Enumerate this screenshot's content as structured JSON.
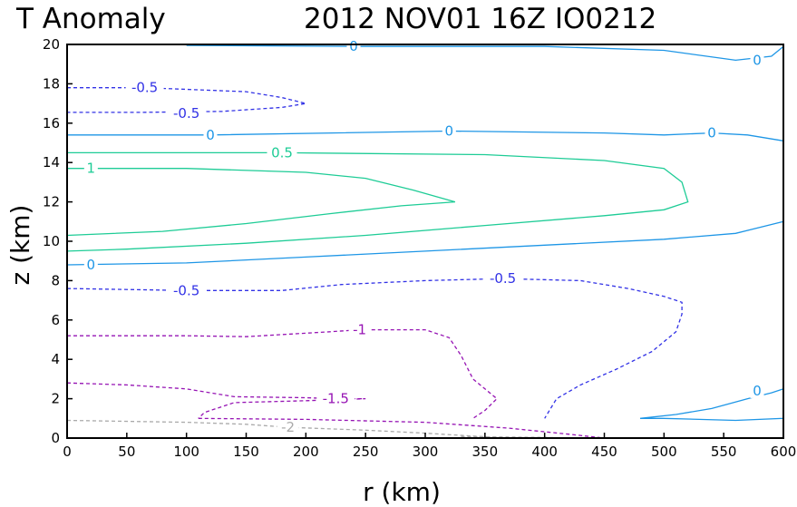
{
  "title_left": "T Anomaly",
  "title_right": "2012 NOV01 16Z   IO0212",
  "chart_data": {
    "type": "contour",
    "title": "T Anomaly",
    "subtitle": "2012 NOV01 16Z   IO0212",
    "xlabel": "r (km)",
    "ylabel": "z (km)",
    "xlim": [
      0,
      600
    ],
    "ylim": [
      0,
      20
    ],
    "x_ticks": [
      0,
      50,
      100,
      150,
      200,
      250,
      300,
      350,
      400,
      450,
      500,
      550,
      600
    ],
    "y_ticks": [
      0,
      2,
      4,
      6,
      8,
      10,
      12,
      14,
      16,
      18,
      20
    ],
    "grid": false,
    "contours": [
      {
        "level": 0,
        "color": "#1e96e6",
        "dashed": false,
        "labels": [
          {
            "text": "0",
            "x": 240,
            "y": 19.9
          },
          {
            "text": "0",
            "x": 578,
            "y": 19.2
          }
        ],
        "points": [
          [
            100,
            19.95
          ],
          [
            240,
            19.9
          ],
          [
            400,
            19.9
          ],
          [
            500,
            19.7
          ],
          [
            560,
            19.2
          ],
          [
            590,
            19.4
          ],
          [
            600,
            19.9
          ]
        ]
      },
      {
        "level": 0,
        "color": "#1e96e6",
        "dashed": false,
        "labels": [
          {
            "text": "0",
            "x": 120,
            "y": 15.4
          },
          {
            "text": "0",
            "x": 320,
            "y": 15.6
          },
          {
            "text": "0",
            "x": 540,
            "y": 15.5
          }
        ],
        "points": [
          [
            0,
            15.4
          ],
          [
            120,
            15.4
          ],
          [
            320,
            15.6
          ],
          [
            450,
            15.5
          ],
          [
            500,
            15.4
          ],
          [
            540,
            15.5
          ],
          [
            570,
            15.4
          ],
          [
            600,
            15.1
          ]
        ]
      },
      {
        "level": 0,
        "color": "#1e96e6",
        "dashed": false,
        "labels": [
          {
            "text": "0",
            "x": 20,
            "y": 8.8
          }
        ],
        "points": [
          [
            0,
            8.8
          ],
          [
            100,
            8.9
          ],
          [
            200,
            9.2
          ],
          [
            300,
            9.5
          ],
          [
            400,
            9.8
          ],
          [
            500,
            10.1
          ],
          [
            560,
            10.4
          ],
          [
            600,
            11.0
          ]
        ]
      },
      {
        "level": 0,
        "color": "#1e96e6",
        "dashed": false,
        "labels": [
          {
            "text": "0",
            "x": 578,
            "y": 2.4
          }
        ],
        "points": [
          [
            480,
            1.0
          ],
          [
            510,
            1.2
          ],
          [
            540,
            1.5
          ],
          [
            570,
            2.0
          ],
          [
            590,
            2.3
          ],
          [
            600,
            2.5
          ],
          [
            600,
            1.0
          ],
          [
            560,
            0.9
          ],
          [
            500,
            1.0
          ],
          [
            480,
            1.0
          ]
        ]
      },
      {
        "level": 0.5,
        "color": "#1ecc96",
        "dashed": false,
        "labels": [
          {
            "text": "0.5",
            "x": 180,
            "y": 14.5
          }
        ],
        "points": [
          [
            0,
            14.5
          ],
          [
            180,
            14.5
          ],
          [
            350,
            14.4
          ],
          [
            450,
            14.1
          ],
          [
            500,
            13.7
          ],
          [
            515,
            13.0
          ],
          [
            520,
            12.0
          ],
          [
            500,
            11.6
          ],
          [
            450,
            11.3
          ],
          [
            350,
            10.8
          ],
          [
            250,
            10.3
          ],
          [
            150,
            9.9
          ],
          [
            50,
            9.6
          ],
          [
            0,
            9.5
          ]
        ]
      },
      {
        "level": 1,
        "color": "#1ecc96",
        "dashed": false,
        "labels": [
          {
            "text": "1",
            "x": 20,
            "y": 13.7
          }
        ],
        "points": [
          [
            0,
            13.7
          ],
          [
            100,
            13.7
          ],
          [
            200,
            13.5
          ],
          [
            250,
            13.2
          ],
          [
            290,
            12.6
          ],
          [
            325,
            12.0
          ],
          [
            280,
            11.8
          ],
          [
            220,
            11.4
          ],
          [
            150,
            10.9
          ],
          [
            80,
            10.5
          ],
          [
            0,
            10.3
          ]
        ]
      },
      {
        "level": -0.5,
        "color": "#3232e6",
        "dashed": true,
        "labels": [
          {
            "text": "-0.5",
            "x": 65,
            "y": 17.8
          },
          {
            "text": "-0.5",
            "x": 100,
            "y": 16.5
          }
        ],
        "points": [
          [
            0,
            17.8
          ],
          [
            65,
            17.8
          ],
          [
            150,
            17.6
          ],
          [
            180,
            17.3
          ],
          [
            200,
            17.0
          ],
          [
            180,
            16.8
          ],
          [
            130,
            16.6
          ],
          [
            60,
            16.55
          ],
          [
            0,
            16.55
          ]
        ]
      },
      {
        "level": -0.5,
        "color": "#3232e6",
        "dashed": true,
        "labels": [
          {
            "text": "-0.5",
            "x": 100,
            "y": 7.5
          },
          {
            "text": "-0.5",
            "x": 365,
            "y": 8.1
          }
        ],
        "points": [
          [
            0,
            7.6
          ],
          [
            100,
            7.5
          ],
          [
            180,
            7.5
          ],
          [
            230,
            7.8
          ],
          [
            300,
            8.0
          ],
          [
            365,
            8.1
          ],
          [
            430,
            8.0
          ],
          [
            470,
            7.6
          ],
          [
            500,
            7.2
          ],
          [
            515,
            6.9
          ],
          [
            515,
            6.3
          ],
          [
            510,
            5.4
          ],
          [
            490,
            4.4
          ],
          [
            460,
            3.5
          ],
          [
            430,
            2.7
          ],
          [
            410,
            2.0
          ],
          [
            400,
            1.0
          ]
        ]
      },
      {
        "level": -1,
        "color": "#9614b4",
        "dashed": true,
        "labels": [
          {
            "text": "-1",
            "x": 245,
            "y": 5.5
          }
        ],
        "points": [
          [
            0,
            5.2
          ],
          [
            100,
            5.2
          ],
          [
            150,
            5.15
          ],
          [
            220,
            5.4
          ],
          [
            245,
            5.5
          ],
          [
            300,
            5.5
          ],
          [
            320,
            5.1
          ],
          [
            330,
            4.2
          ],
          [
            340,
            3.0
          ],
          [
            360,
            2.0
          ],
          [
            350,
            1.4
          ],
          [
            340,
            1.0
          ]
        ]
      },
      {
        "level": -1,
        "color": "#9614b4",
        "dashed": true,
        "labels": [],
        "points": [
          [
            110,
            1.0
          ],
          [
            200,
            0.95
          ],
          [
            300,
            0.8
          ],
          [
            370,
            0.5
          ],
          [
            420,
            0.2
          ],
          [
            450,
            0.0
          ]
        ]
      },
      {
        "level": -1.5,
        "color": "#9614b4",
        "dashed": true,
        "labels": [
          {
            "text": "-1.5",
            "x": 225,
            "y": 2.0
          }
        ],
        "points": [
          [
            0,
            2.8
          ],
          [
            50,
            2.7
          ],
          [
            100,
            2.5
          ],
          [
            140,
            2.1
          ],
          [
            200,
            2.05
          ],
          [
            225,
            2.0
          ],
          [
            250,
            2.0
          ],
          [
            200,
            1.9
          ],
          [
            140,
            1.8
          ],
          [
            115,
            1.3
          ],
          [
            110,
            1.0
          ]
        ]
      },
      {
        "level": -2,
        "color": "#aaaaaa",
        "dashed": true,
        "labels": [
          {
            "text": "-2",
            "x": 185,
            "y": 0.55
          }
        ],
        "points": [
          [
            0,
            0.9
          ],
          [
            100,
            0.8
          ],
          [
            150,
            0.7
          ],
          [
            185,
            0.55
          ],
          [
            250,
            0.4
          ],
          [
            300,
            0.25
          ],
          [
            340,
            0.1
          ],
          [
            370,
            0.0
          ]
        ]
      },
      {
        "level": -0.5,
        "color": "#aaaaaa",
        "dashed": true,
        "labels": [],
        "points": [
          [
            330,
            0.08
          ],
          [
            400,
            0.03
          ],
          [
            440,
            0.0
          ]
        ]
      }
    ]
  }
}
